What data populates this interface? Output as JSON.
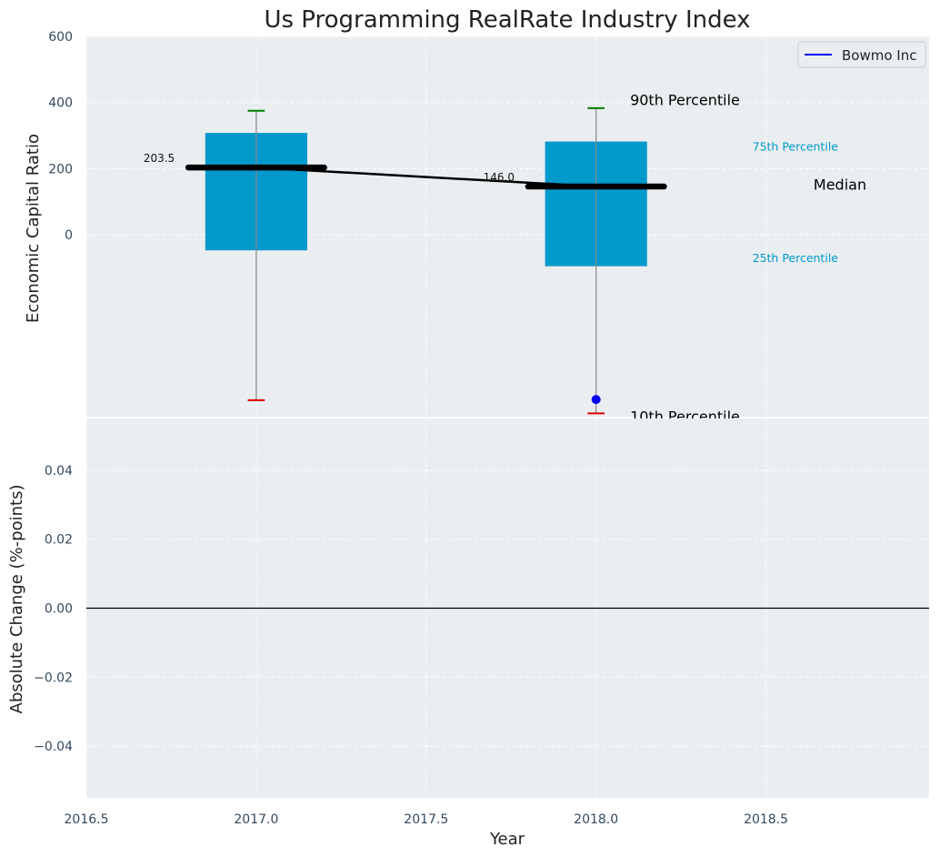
{
  "chart_data": {
    "type": "box",
    "title": "Us Programming RealRate Industry Index",
    "xlabel": "Year",
    "top": {
      "ylabel": "Economic Capital Ratio",
      "ylim": [
        -550,
        600
      ],
      "yticks": [
        600,
        400,
        200,
        0
      ],
      "yticklabels": [
        "600",
        "400",
        "200",
        "0"
      ],
      "boxes": [
        {
          "x": 2017.0,
          "whisker_low": -500,
          "q1": -47,
          "median": 203.5,
          "q3": 308,
          "whisker_high": 375
        },
        {
          "x": 2018.0,
          "whisker_low": -540,
          "q1": -95,
          "median": 146.0,
          "q3": 282,
          "whisker_high": 383
        }
      ],
      "median_labels": [
        "203.5",
        "146.0"
      ],
      "series": [
        {
          "name": "Bowmo Inc",
          "x": [
            2018.0
          ],
          "y": [
            -498
          ],
          "color": "#0000ee"
        }
      ],
      "median_line": {
        "x": [
          2017.0,
          2018.0
        ],
        "y": [
          203.5,
          146.0
        ]
      },
      "annotations": {
        "p90": "90th Percentile",
        "p75": "75th Percentile",
        "median": "Median",
        "p25": "25th Percentile",
        "p10": "10th Percentile"
      },
      "legend": {
        "position": "top-right",
        "entries": [
          "Bowmo Inc"
        ]
      }
    },
    "bottom": {
      "ylabel": "Absolute Change (%-points)",
      "ylim": [
        -0.055,
        0.055
      ],
      "yticks": [
        0.04,
        0.02,
        0.0,
        -0.02,
        -0.04
      ],
      "yticklabels": [
        "0.04",
        "0.02",
        "0.00",
        "−0.02",
        "−0.04"
      ],
      "zero_line": 0.0
    },
    "xlim": [
      2016.5,
      2018.98
    ],
    "xticks": [
      2016.5,
      2017.0,
      2017.5,
      2018.0,
      2018.5
    ],
    "xticklabels": [
      "2016.5",
      "2017.0",
      "2017.5",
      "2018.0",
      "2018.5"
    ],
    "colors": {
      "background": "#eaeef0",
      "box": "#0099cc",
      "median": "#000000",
      "whisker_high_cap": "#008000",
      "whisker_low_cap": "#dd0000",
      "whisker": "#888888",
      "series": "#0000ee"
    },
    "grid": true
  }
}
